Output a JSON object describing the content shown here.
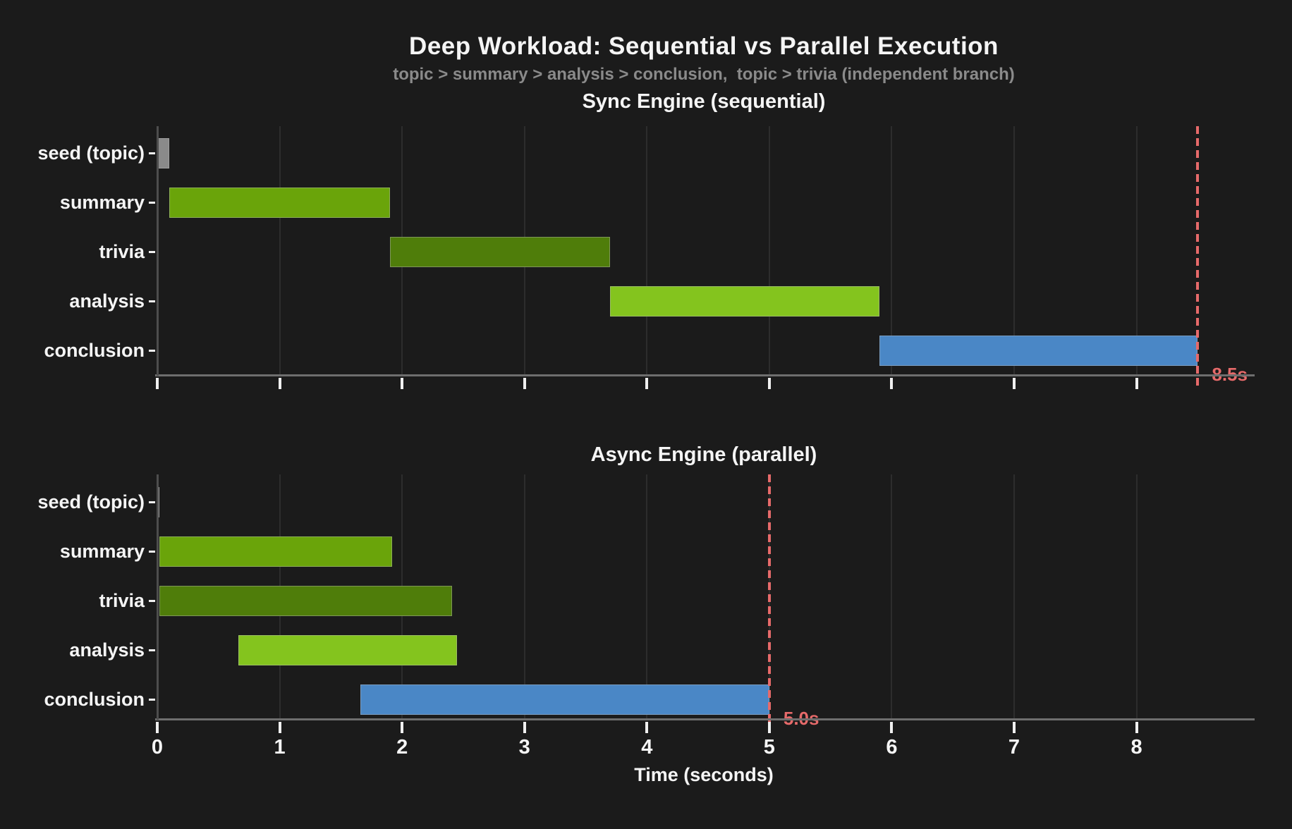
{
  "header": {
    "title": "Deep Workload: Sequential vs Parallel Execution",
    "subtitle": "topic > summary > analysis > conclusion,  topic > trivia (independent branch)"
  },
  "x_axis": {
    "label": "Time (seconds)",
    "tick_values": [
      0,
      1,
      2,
      3,
      4,
      5,
      6,
      7,
      8
    ],
    "tick_labels": [
      "0",
      "1",
      "2",
      "3",
      "4",
      "5",
      "6",
      "7",
      "8"
    ],
    "max_seconds": 8.93
  },
  "colors": {
    "background": "#1b1b1b",
    "grid": "#2d2d2d",
    "text": "#f5f5f5",
    "subtitle": "#8a8a8a",
    "deadline": "#e66a6a",
    "seed": "#8a8a8a",
    "summary": "#6aa40a",
    "trivia": "#4f7d0a",
    "analysis": "#84c41e",
    "conclusion": "#4a87c6"
  },
  "chart_data": [
    {
      "type": "gantt",
      "title": "Sync Engine (sequential)",
      "deadline": {
        "time": 8.5,
        "label": "8.5s"
      },
      "show_x_tick_labels": false,
      "tasks": [
        {
          "label": "seed (topic)",
          "start": 0.0,
          "end": 0.1,
          "color_key": "seed"
        },
        {
          "label": "summary",
          "start": 0.1,
          "end": 1.9,
          "color_key": "summary"
        },
        {
          "label": "trivia",
          "start": 1.9,
          "end": 3.7,
          "color_key": "trivia"
        },
        {
          "label": "analysis",
          "start": 3.7,
          "end": 5.9,
          "color_key": "analysis"
        },
        {
          "label": "conclusion",
          "start": 5.9,
          "end": 8.5,
          "color_key": "conclusion"
        }
      ]
    },
    {
      "type": "gantt",
      "title": "Async Engine (parallel)",
      "deadline": {
        "time": 5.0,
        "label": "5.0s"
      },
      "show_x_tick_labels": true,
      "tasks": [
        {
          "label": "seed (topic)",
          "start": 0.0,
          "end": 0.02,
          "color_key": "seed"
        },
        {
          "label": "summary",
          "start": 0.02,
          "end": 1.92,
          "color_key": "summary"
        },
        {
          "label": "trivia",
          "start": 0.02,
          "end": 2.41,
          "color_key": "trivia"
        },
        {
          "label": "analysis",
          "start": 0.66,
          "end": 2.45,
          "color_key": "analysis"
        },
        {
          "label": "conclusion",
          "start": 1.66,
          "end": 5.0,
          "color_key": "conclusion"
        }
      ]
    }
  ]
}
